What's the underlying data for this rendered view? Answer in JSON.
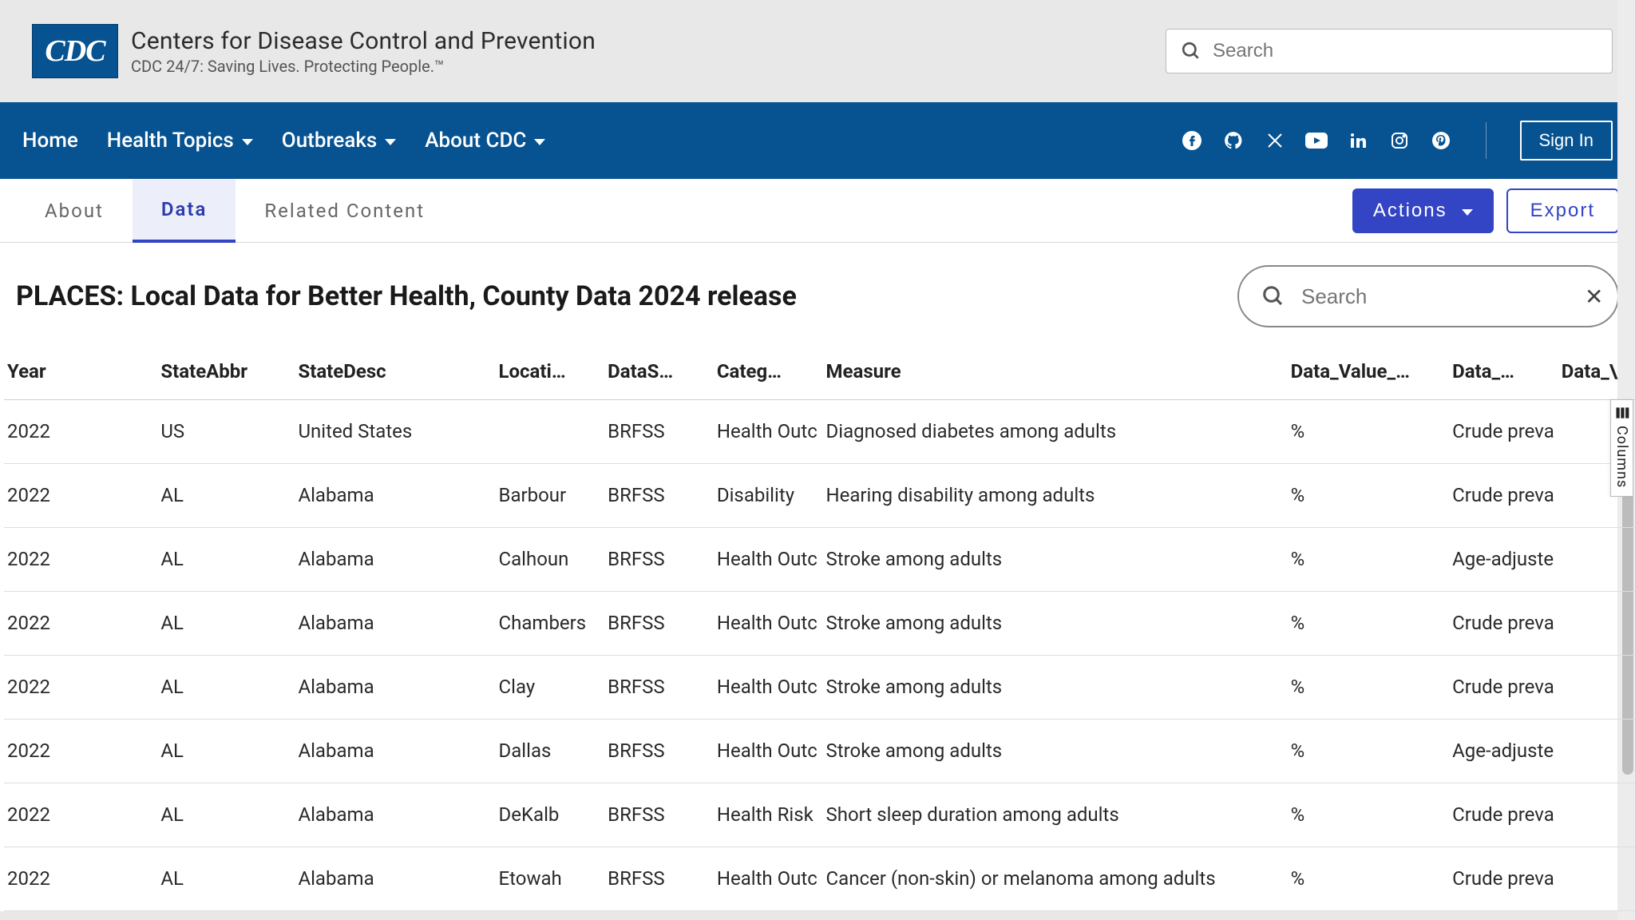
{
  "header": {
    "logo_text": "CDC",
    "org_title": "Centers for Disease Control and Prevention",
    "org_sub": "CDC 24/7: Saving Lives. Protecting People.™",
    "search_placeholder": "Search"
  },
  "nav": {
    "items": [
      {
        "label": "Home",
        "has_caret": false
      },
      {
        "label": "Health Topics",
        "has_caret": true
      },
      {
        "label": "Outbreaks",
        "has_caret": true
      },
      {
        "label": "About CDC",
        "has_caret": true
      }
    ],
    "signin_label": "Sign In"
  },
  "tabs": {
    "items": [
      "About",
      "Data",
      "Related Content"
    ],
    "active_index": 1,
    "actions_label": "Actions",
    "export_label": "Export"
  },
  "page": {
    "title": "PLACES: Local Data for Better Health, County Data 2024 release",
    "search_placeholder": "Search"
  },
  "columns_label": "Columns",
  "table": {
    "columns": [
      "Year",
      "StateAbbr",
      "StateDesc",
      "Locati…",
      "DataS…",
      "Categ…",
      "Measure",
      "Data_Value_…",
      "Data_…",
      "Data_\\"
    ],
    "rows": [
      [
        "2022",
        "US",
        "United States",
        "",
        "BRFSS",
        "Health Outc",
        "Diagnosed diabetes among adults",
        "%",
        "Crude preva",
        ""
      ],
      [
        "2022",
        "AL",
        "Alabama",
        "Barbour",
        "BRFSS",
        "Disability",
        "Hearing disability among adults",
        "%",
        "Crude preva",
        ""
      ],
      [
        "2022",
        "AL",
        "Alabama",
        "Calhoun",
        "BRFSS",
        "Health Outc",
        "Stroke among adults",
        "%",
        "Age-adjuste",
        ""
      ],
      [
        "2022",
        "AL",
        "Alabama",
        "Chambers",
        "BRFSS",
        "Health Outc",
        "Stroke among adults",
        "%",
        "Crude preva",
        ""
      ],
      [
        "2022",
        "AL",
        "Alabama",
        "Clay",
        "BRFSS",
        "Health Outc",
        "Stroke among adults",
        "%",
        "Crude preva",
        ""
      ],
      [
        "2022",
        "AL",
        "Alabama",
        "Dallas",
        "BRFSS",
        "Health Outc",
        "Stroke among adults",
        "%",
        "Age-adjuste",
        ""
      ],
      [
        "2022",
        "AL",
        "Alabama",
        "DeKalb",
        "BRFSS",
        "Health Risk",
        "Short sleep duration among adults",
        "%",
        "Crude preva",
        ""
      ],
      [
        "2022",
        "AL",
        "Alabama",
        "Etowah",
        "BRFSS",
        "Health Outc",
        "Cancer (non-skin) or melanoma among adults",
        "%",
        "Crude preva",
        ""
      ]
    ]
  },
  "colors": {
    "brand_blue": "#075290",
    "accent_indigo": "#3344c4",
    "page_bg": "#e8e8e8"
  }
}
